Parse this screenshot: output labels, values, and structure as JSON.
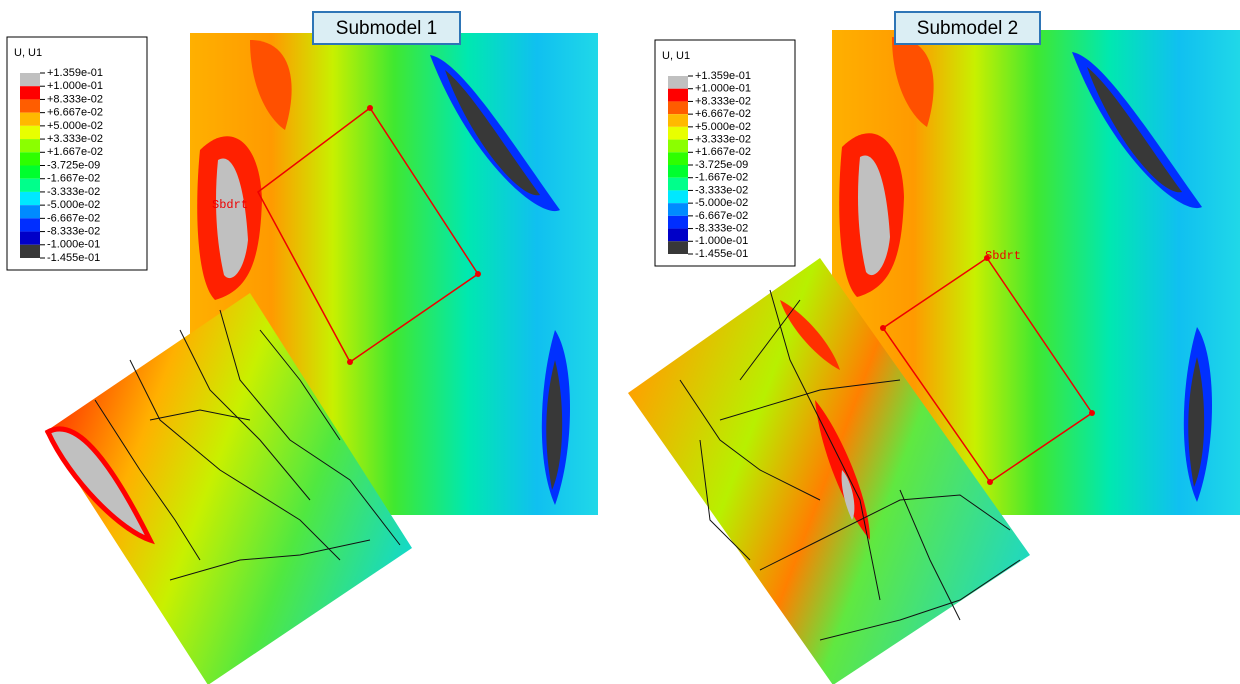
{
  "panels": [
    {
      "title": "Submodel 1",
      "annotation": "Sbdrt",
      "legend": {
        "title": "U, U1",
        "labels": [
          "+1.359e-01",
          "+1.000e-01",
          "+8.333e-02",
          "+6.667e-02",
          "+5.000e-02",
          "+3.333e-02",
          "+1.667e-02",
          "-3.725e-09",
          "-1.667e-02",
          "-3.333e-02",
          "-5.000e-02",
          "-6.667e-02",
          "-8.333e-02",
          "-1.000e-01",
          "-1.455e-01"
        ],
        "colors": [
          "#c0c0c0",
          "#ff0000",
          "#ff5d00",
          "#ffb900",
          "#e8ff00",
          "#8bff00",
          "#2eff00",
          "#00ff2e",
          "#00ff8b",
          "#00e8ff",
          "#008bff",
          "#002eff",
          "#0000c8",
          "#383838"
        ]
      }
    },
    {
      "title": "Submodel 2",
      "annotation": "Sbdrt",
      "legend": {
        "title": "U, U1",
        "labels": [
          "+1.359e-01",
          "+1.000e-01",
          "+8.333e-02",
          "+6.667e-02",
          "+5.000e-02",
          "+3.333e-02",
          "+1.667e-02",
          "-3.725e-09",
          "-1.667e-02",
          "-3.333e-02",
          "-5.000e-02",
          "-6.667e-02",
          "-8.333e-02",
          "-1.000e-01",
          "-1.455e-01"
        ],
        "colors": [
          "#c0c0c0",
          "#ff0000",
          "#ff5d00",
          "#ffb900",
          "#e8ff00",
          "#8bff00",
          "#2eff00",
          "#00ff2e",
          "#00ff8b",
          "#00e8ff",
          "#008bff",
          "#002eff",
          "#0000c8",
          "#383838"
        ]
      }
    }
  ]
}
